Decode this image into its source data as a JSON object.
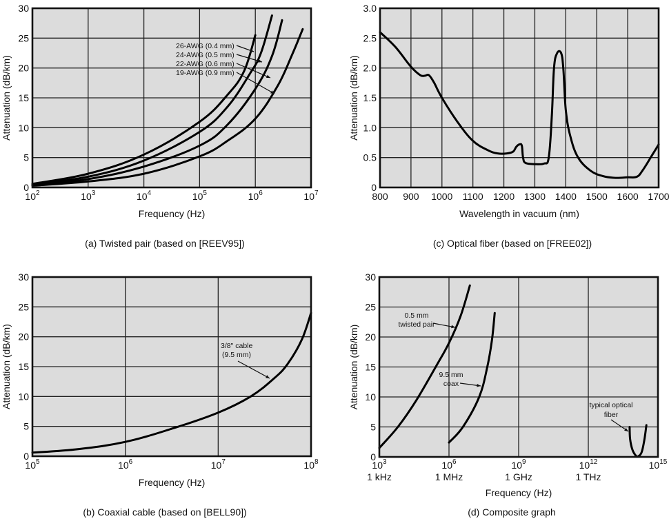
{
  "chart_data": [
    {
      "id": "a",
      "type": "line",
      "caption": "(a) Twisted pair (based on [REEV95])",
      "xlabel": "Frequency (Hz)",
      "ylabel": "Attenuation (dB/km)",
      "xscale": "log",
      "xlim_exp": [
        2,
        7
      ],
      "ylim": [
        0,
        30
      ],
      "grid": true,
      "x_ticks": [
        {
          "base": "10",
          "exp": "2"
        },
        {
          "base": "10",
          "exp": "3"
        },
        {
          "base": "10",
          "exp": "4"
        },
        {
          "base": "10",
          "exp": "5"
        },
        {
          "base": "10",
          "exp": "6"
        },
        {
          "base": "10",
          "exp": "7"
        }
      ],
      "y_ticks": [
        "0",
        "5",
        "10",
        "15",
        "20",
        "25",
        "30"
      ],
      "series": [
        {
          "name": "26-AWG (0.4 mm)",
          "points": [
            [
              2,
              0.6
            ],
            [
              3,
              2.3
            ],
            [
              4,
              5.5
            ],
            [
              5,
              11
            ],
            [
              5.5,
              15.5
            ],
            [
              5.8,
              19.5
            ],
            [
              6,
              25.5
            ]
          ]
        },
        {
          "name": "24-AWG (0.5 mm)",
          "points": [
            [
              2,
              0.5
            ],
            [
              3,
              1.8
            ],
            [
              4,
              4.5
            ],
            [
              5,
              9.3
            ],
            [
              5.5,
              13.5
            ],
            [
              5.9,
              19
            ],
            [
              6.1,
              22.5
            ],
            [
              6.3,
              28.8
            ]
          ]
        },
        {
          "name": "22-AWG (0.6 mm)",
          "points": [
            [
              2,
              0.4
            ],
            [
              3,
              1.4
            ],
            [
              4,
              3.5
            ],
            [
              5,
              7
            ],
            [
              5.5,
              10.5
            ],
            [
              6,
              16.5
            ],
            [
              6.3,
              22
            ],
            [
              6.48,
              28
            ]
          ]
        },
        {
          "name": "19-AWG (0.9 mm)",
          "points": [
            [
              2,
              0.3
            ],
            [
              3,
              1
            ],
            [
              4,
              2.3
            ],
            [
              5,
              5.2
            ],
            [
              5.5,
              7.8
            ],
            [
              6,
              11.5
            ],
            [
              6.4,
              17
            ],
            [
              6.65,
              22
            ],
            [
              6.85,
              26.5
            ]
          ]
        }
      ],
      "annotations": [
        "26-AWG (0.4 mm)",
        "24-AWG (0.5 mm)",
        "22-AWG (0.6 mm)",
        "19-AWG (0.9 mm)"
      ]
    },
    {
      "id": "c",
      "type": "line",
      "caption": "(c) Optical fiber (based on [FREE02])",
      "xlabel": "Wavelength in vacuum (nm)",
      "ylabel": "Attenuation (dB/km)",
      "xscale": "linear",
      "xlim": [
        800,
        1700
      ],
      "ylim": [
        0,
        3.0
      ],
      "grid": true,
      "x_ticks": [
        "800",
        "900",
        "1000",
        "1100",
        "1200",
        "1300",
        "1400",
        "1500",
        "1600",
        "1700"
      ],
      "y_ticks": [
        "0",
        "0.5",
        "1.0",
        "1.5",
        "2.0",
        "2.5",
        "3.0"
      ],
      "series": [
        {
          "name": "Optical fiber",
          "points": [
            [
              800,
              2.6
            ],
            [
              850,
              2.35
            ],
            [
              900,
              2.02
            ],
            [
              930,
              1.88
            ],
            [
              945,
              1.87
            ],
            [
              958,
              1.88
            ],
            [
              975,
              1.75
            ],
            [
              1000,
              1.5
            ],
            [
              1050,
              1.1
            ],
            [
              1100,
              0.78
            ],
            [
              1150,
              0.62
            ],
            [
              1180,
              0.57
            ],
            [
              1210,
              0.57
            ],
            [
              1230,
              0.6
            ],
            [
              1240,
              0.68
            ],
            [
              1250,
              0.72
            ],
            [
              1258,
              0.7
            ],
            [
              1262,
              0.5
            ],
            [
              1270,
              0.41
            ],
            [
              1300,
              0.39
            ],
            [
              1330,
              0.4
            ],
            [
              1345,
              0.5
            ],
            [
              1355,
              1.2
            ],
            [
              1362,
              2.0
            ],
            [
              1372,
              2.25
            ],
            [
              1385,
              2.25
            ],
            [
              1392,
              2.0
            ],
            [
              1400,
              1.3
            ],
            [
              1415,
              0.85
            ],
            [
              1440,
              0.5
            ],
            [
              1480,
              0.28
            ],
            [
              1520,
              0.19
            ],
            [
              1560,
              0.16
            ],
            [
              1600,
              0.17
            ],
            [
              1630,
              0.18
            ],
            [
              1650,
              0.3
            ],
            [
              1680,
              0.55
            ],
            [
              1700,
              0.72
            ]
          ]
        }
      ]
    },
    {
      "id": "b",
      "type": "line",
      "caption": "(b) Coaxial cable (based on [BELL90])",
      "xlabel": "Frequency (Hz)",
      "ylabel": "Attenuation (dB/km)",
      "xscale": "log",
      "xlim_exp": [
        5,
        8
      ],
      "ylim": [
        0,
        30
      ],
      "grid": true,
      "x_ticks": [
        {
          "base": "10",
          "exp": "5"
        },
        {
          "base": "10",
          "exp": "6"
        },
        {
          "base": "10",
          "exp": "7"
        },
        {
          "base": "10",
          "exp": "8"
        }
      ],
      "y_ticks": [
        "0",
        "5",
        "10",
        "15",
        "20",
        "25",
        "30"
      ],
      "series": [
        {
          "name": "3/8\" cable (9.5 mm)",
          "points": [
            [
              5,
              0.6
            ],
            [
              5.5,
              1.2
            ],
            [
              6,
              2.4
            ],
            [
              6.5,
              4.6
            ],
            [
              7,
              7.3
            ],
            [
              7.35,
              10
            ],
            [
              7.6,
              13
            ],
            [
              7.75,
              15.5
            ],
            [
              7.9,
              19.5
            ],
            [
              8,
              24
            ]
          ]
        }
      ],
      "annotations": [
        "3/8\" cable",
        "(9.5 mm)"
      ]
    },
    {
      "id": "d",
      "type": "line",
      "caption": "(d) Composite graph",
      "xlabel": "Frequency (Hz)",
      "ylabel": "Attenuation (dB/km)",
      "xscale": "log",
      "xlim_exp": [
        3,
        15
      ],
      "ylim": [
        0,
        30
      ],
      "grid": true,
      "x_ticks": [
        {
          "base": "10",
          "exp": "3",
          "sub": "1 kHz"
        },
        {
          "base": "10",
          "exp": "6",
          "sub": "1 MHz"
        },
        {
          "base": "10",
          "exp": "9",
          "sub": "1 GHz"
        },
        {
          "base": "10",
          "exp": "12",
          "sub": "1 THz"
        },
        {
          "base": "10",
          "exp": "15",
          "sub": ""
        }
      ],
      "y_ticks": [
        "0",
        "5",
        "10",
        "15",
        "20",
        "25",
        "30"
      ],
      "series": [
        {
          "name": "0.5 mm twisted pair",
          "points": [
            [
              3,
              1.5
            ],
            [
              3.8,
              5
            ],
            [
              4.6,
              9.5
            ],
            [
              5.5,
              15.5
            ],
            [
              6,
              19
            ],
            [
              6.5,
              23.5
            ],
            [
              6.9,
              28.6
            ]
          ]
        },
        {
          "name": "9.5 mm coax",
          "points": [
            [
              6,
              2.4
            ],
            [
              6.6,
              5
            ],
            [
              7.3,
              10
            ],
            [
              7.65,
              15
            ],
            [
              7.85,
              19.5
            ],
            [
              7.97,
              24
            ]
          ]
        },
        {
          "name": "typical optical fiber",
          "points": [
            [
              13.78,
              5
            ],
            [
              13.8,
              3
            ],
            [
              13.9,
              1.2
            ],
            [
              14.05,
              0.2
            ],
            [
              14.15,
              0.1
            ],
            [
              14.3,
              0.8
            ],
            [
              14.42,
              3
            ],
            [
              14.5,
              5.3
            ]
          ]
        }
      ],
      "annotations": [
        "0.5 mm",
        "twisted pair",
        "9.5 mm",
        "coax",
        "typical optical",
        "fiber"
      ]
    }
  ]
}
